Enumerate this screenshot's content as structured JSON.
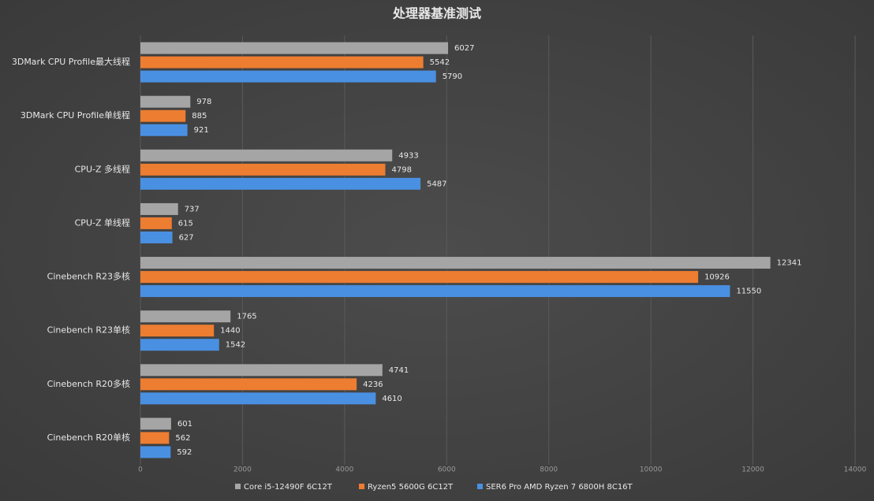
{
  "chart_data": {
    "type": "bar",
    "orientation": "horizontal",
    "title": "处理器基准测试",
    "categories": [
      "3DMark CPU Profile最大线程",
      "3DMark CPU Profile单线程",
      "CPU-Z 多线程",
      "CPU-Z 单线程",
      "Cinebench R23多核",
      "Cinebench R23单核",
      "Cinebench R20多核",
      "Cinebench R20单核"
    ],
    "series": [
      {
        "name": "Core i5-12490F 6C12T",
        "color": "#a5a5a5",
        "values": [
          6027,
          978,
          4933,
          737,
          12341,
          1765,
          4741,
          601
        ]
      },
      {
        "name": "Ryzen5 5600G 6C12T",
        "color": "#ed7d31",
        "values": [
          5542,
          885,
          4798,
          615,
          10926,
          1440,
          4236,
          562
        ]
      },
      {
        "name": "SER6 Pro AMD Ryzen 7 6800H 8C16T",
        "color": "#4a90e2",
        "values": [
          5790,
          921,
          5487,
          627,
          11550,
          1542,
          4610,
          592
        ]
      }
    ],
    "xlim": [
      0,
      14000
    ],
    "xticks": [
      0,
      2000,
      4000,
      6000,
      8000,
      10000,
      12000,
      14000
    ],
    "grid": true,
    "legend": "bottom"
  }
}
